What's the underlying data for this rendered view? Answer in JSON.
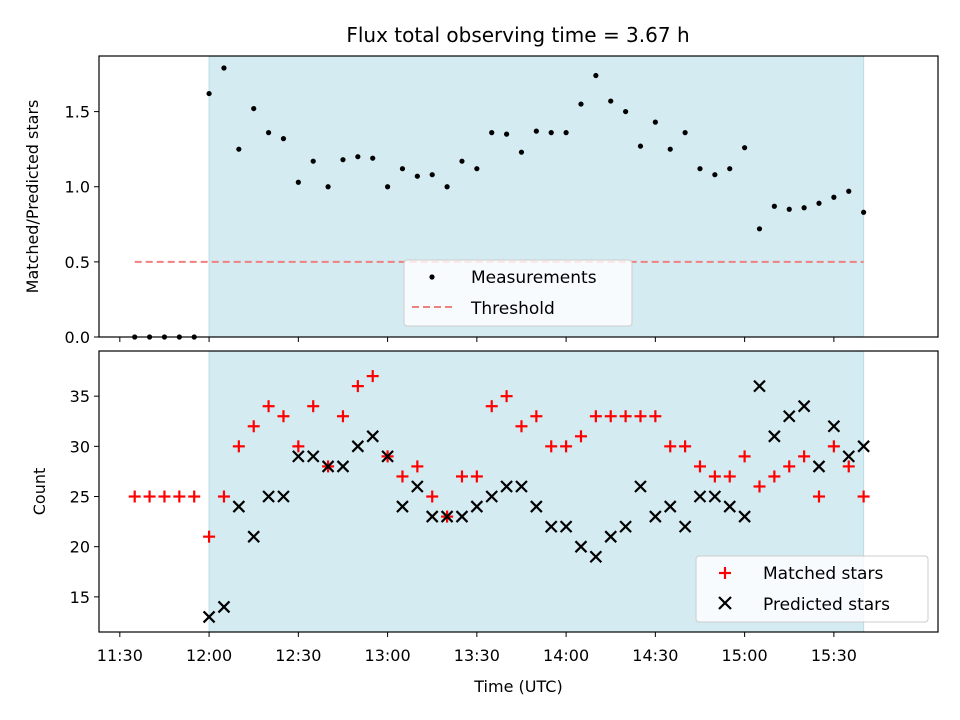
{
  "chart_data": [
    {
      "type": "scatter",
      "title": "Flux total observing time = 3.67 h",
      "xlabel": "",
      "ylabel": "Matched/Predicted stars",
      "ylim": [
        0,
        1.87
      ],
      "yticks": [
        "0.0",
        "0.5",
        "1.0",
        "1.5"
      ],
      "ytick_values": [
        0,
        0.5,
        1.0,
        1.5
      ],
      "shaded_region": {
        "start": "12:00",
        "end": "15:40",
        "color": "#d4ebf2"
      },
      "legend_position": "lower-center",
      "series": [
        {
          "name": "Measurements",
          "marker": "dot",
          "color": "#000000",
          "x": [
            "11:35",
            "11:40",
            "11:45",
            "11:50",
            "11:55",
            "12:00",
            "12:05",
            "12:10",
            "12:15",
            "12:20",
            "12:25",
            "12:30",
            "12:35",
            "12:40",
            "12:45",
            "12:50",
            "12:55",
            "13:00",
            "13:05",
            "13:10",
            "13:15",
            "13:20",
            "13:25",
            "13:30",
            "13:35",
            "13:40",
            "13:45",
            "13:50",
            "13:55",
            "14:00",
            "14:05",
            "14:10",
            "14:15",
            "14:20",
            "14:25",
            "14:30",
            "14:35",
            "14:40",
            "14:45",
            "14:50",
            "14:55",
            "15:00",
            "15:05",
            "15:10",
            "15:15",
            "15:20",
            "15:25",
            "15:30",
            "15:35",
            "15:40"
          ],
          "y": [
            0,
            0,
            0,
            0,
            0,
            1.62,
            1.79,
            1.25,
            1.52,
            1.36,
            1.32,
            1.03,
            1.17,
            1.0,
            1.18,
            1.2,
            1.19,
            1.0,
            1.12,
            1.07,
            1.08,
            1.0,
            1.17,
            1.12,
            1.36,
            1.35,
            1.23,
            1.37,
            1.36,
            1.36,
            1.55,
            1.74,
            1.57,
            1.5,
            1.27,
            1.43,
            1.25,
            1.36,
            1.12,
            1.08,
            1.12,
            1.26,
            0.72,
            0.87,
            0.85,
            0.86,
            0.89,
            0.93,
            0.97,
            0.83
          ]
        },
        {
          "name": "Threshold",
          "marker": "dashed-line",
          "color": "#f08080",
          "x": [
            "11:35",
            "15:40"
          ],
          "y": [
            0.5,
            0.5
          ]
        }
      ]
    },
    {
      "type": "scatter",
      "xlabel": "Time (UTC)",
      "ylabel": "Count",
      "ylim": [
        11.5,
        39.5
      ],
      "yticks": [
        "15",
        "20",
        "25",
        "30",
        "35"
      ],
      "ytick_values": [
        15,
        20,
        25,
        30,
        35
      ],
      "xticks": [
        "11:30",
        "12:00",
        "12:30",
        "13:00",
        "13:30",
        "14:00",
        "14:30",
        "15:00",
        "15:30"
      ],
      "xlim": [
        "11:23",
        "16:05"
      ],
      "shaded_region": {
        "start": "12:00",
        "end": "15:40",
        "color": "#d4ebf2"
      },
      "legend_position": "lower-right",
      "series": [
        {
          "name": "Matched stars",
          "marker": "plus",
          "color": "#ff0000",
          "x": [
            "11:35",
            "11:40",
            "11:45",
            "11:50",
            "11:55",
            "12:00",
            "12:05",
            "12:10",
            "12:15",
            "12:20",
            "12:25",
            "12:30",
            "12:35",
            "12:40",
            "12:45",
            "12:50",
            "12:55",
            "13:00",
            "13:05",
            "13:10",
            "13:15",
            "13:20",
            "13:25",
            "13:30",
            "13:35",
            "13:40",
            "13:45",
            "13:50",
            "13:55",
            "14:00",
            "14:05",
            "14:10",
            "14:15",
            "14:20",
            "14:25",
            "14:30",
            "14:35",
            "14:40",
            "14:45",
            "14:50",
            "14:55",
            "15:00",
            "15:05",
            "15:10",
            "15:15",
            "15:20",
            "15:25",
            "15:30",
            "15:35",
            "15:40"
          ],
          "y": [
            25,
            25,
            25,
            25,
            25,
            21,
            25,
            30,
            32,
            34,
            33,
            30,
            34,
            28,
            33,
            36,
            37,
            29,
            27,
            28,
            25,
            23,
            27,
            27,
            34,
            35,
            32,
            33,
            30,
            30,
            31,
            33,
            33,
            33,
            33,
            33,
            30,
            30,
            28,
            27,
            27,
            29,
            26,
            27,
            28,
            29,
            25,
            30,
            28,
            25
          ]
        },
        {
          "name": "Predicted stars",
          "marker": "x",
          "color": "#000000",
          "x": [
            "12:00",
            "12:05",
            "12:10",
            "12:15",
            "12:20",
            "12:25",
            "12:30",
            "12:35",
            "12:40",
            "12:45",
            "12:50",
            "12:55",
            "13:00",
            "13:05",
            "13:10",
            "13:15",
            "13:20",
            "13:25",
            "13:30",
            "13:35",
            "13:40",
            "13:45",
            "13:50",
            "13:55",
            "14:00",
            "14:05",
            "14:10",
            "14:15",
            "14:20",
            "14:25",
            "14:30",
            "14:35",
            "14:40",
            "14:45",
            "14:50",
            "14:55",
            "15:00",
            "15:05",
            "15:10",
            "15:15",
            "15:20",
            "15:25",
            "15:30",
            "15:35",
            "15:40"
          ],
          "y": [
            13,
            14,
            24,
            21,
            25,
            25,
            29,
            29,
            28,
            28,
            30,
            31,
            29,
            24,
            26,
            23,
            23,
            23,
            24,
            25,
            26,
            26,
            24,
            22,
            22,
            20,
            19,
            21,
            22,
            26,
            23,
            24,
            22,
            25,
            25,
            24,
            23,
            36,
            31,
            33,
            34,
            28,
            32,
            29,
            30
          ]
        }
      ]
    }
  ]
}
